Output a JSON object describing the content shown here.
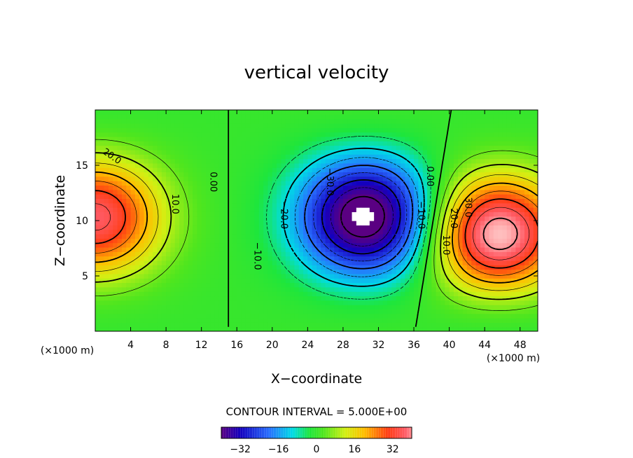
{
  "chart_data": {
    "type": "heatmap",
    "title": "vertical velocity",
    "xlabel": "X−coordinate",
    "ylabel": "Z−coordinate",
    "x_unit": "(×1000 m)",
    "x_range": [
      0,
      50
    ],
    "y_range": [
      0,
      20
    ],
    "x_ticks": [
      4,
      8,
      12,
      16,
      20,
      24,
      28,
      32,
      36,
      40,
      44,
      48
    ],
    "x_tick_labels": [
      "4",
      "8",
      "12",
      "16",
      "20",
      "24",
      "28",
      "32",
      "36",
      "40",
      "44",
      "48"
    ],
    "y_ticks": [
      5,
      10,
      15
    ],
    "y_tick_labels": [
      "5",
      "10",
      "15"
    ],
    "contour_interval": 5,
    "contour_interval_text": "CONTOUR INTERVAL = 5.000E+00",
    "colorbar": {
      "range": [
        -40,
        40
      ],
      "ticks": [
        -32,
        -16,
        0,
        16,
        32
      ],
      "tick_labels": [
        "−32",
        "−16",
        "0",
        "16",
        "32"
      ]
    },
    "field_sources": [
      {
        "x": 0,
        "z": 10.5,
        "amplitude": 37
      },
      {
        "x": 30.5,
        "z": 10.5,
        "amplitude": -46
      },
      {
        "x": 45.5,
        "z": 8.2,
        "amplitude": 45
      }
    ],
    "contour_labels": [
      {
        "text": "20.0",
        "x": 1.7,
        "z": 15.6
      },
      {
        "text": "10.0",
        "x": 8.7,
        "z": 11.5
      },
      {
        "text": "0.00",
        "x": 13.0,
        "z": 13.5
      },
      {
        "text": "−30.0",
        "x": 26.2,
        "z": 13.5
      },
      {
        "text": "−20.0",
        "x": 21.0,
        "z": 10.5
      },
      {
        "text": "−10.0",
        "x": 18.0,
        "z": 6.8
      },
      {
        "text": "−10.0",
        "x": 36.5,
        "z": 10.5
      },
      {
        "text": "0.00",
        "x": 37.5,
        "z": 14.0
      },
      {
        "text": "10.0",
        "x": 39.3,
        "z": 7.8
      },
      {
        "text": "20.0",
        "x": 40.2,
        "z": 10.2
      },
      {
        "text": "30.0",
        "x": 41.8,
        "z": 11.2
      }
    ]
  }
}
